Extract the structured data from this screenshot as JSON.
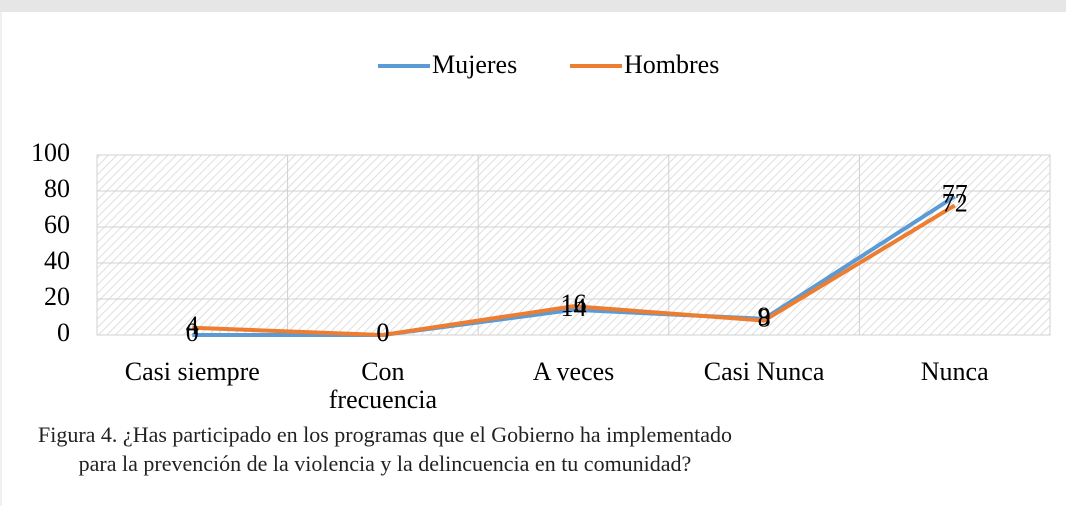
{
  "chart_data": {
    "type": "line",
    "categories": [
      "Casi siempre",
      "Con frecuencia",
      "A veces",
      "Casi Nunca",
      "Nunca"
    ],
    "series": [
      {
        "name": "Mujeres",
        "color": "#5b9bd5",
        "values": [
          0,
          0,
          14,
          9,
          77
        ]
      },
      {
        "name": "Hombres",
        "color": "#ed7d31",
        "values": [
          4,
          0,
          16,
          8,
          72
        ]
      }
    ],
    "ylim": [
      0,
      100
    ],
    "yticks": [
      0,
      20,
      40,
      60,
      80,
      100
    ],
    "grid": true,
    "legend": "top",
    "caption": "Figura 4. ¿Has participado en los programas que el Gobierno ha implementado para la prevención de la violencia y la delincuencia en tu comunidad?"
  }
}
